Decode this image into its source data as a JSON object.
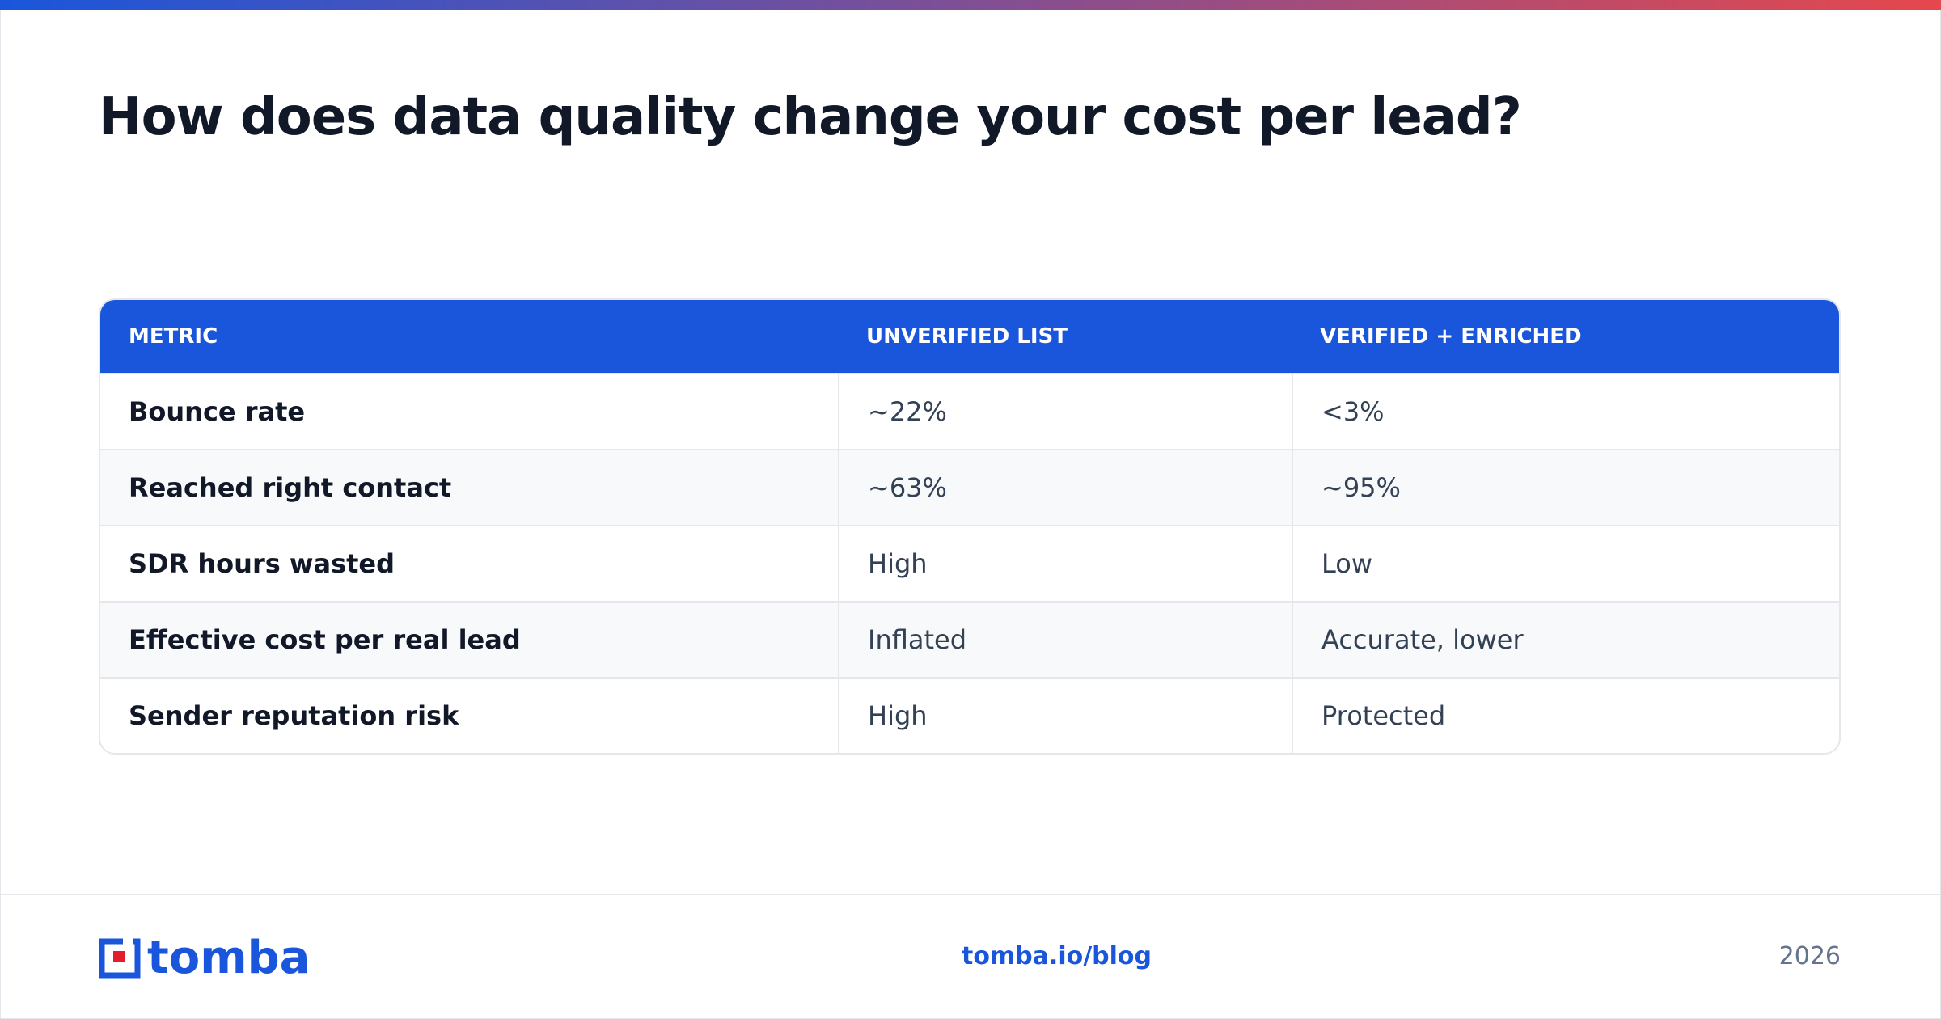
{
  "header": {
    "title": "How does data quality change your cost per lead?"
  },
  "table": {
    "columns": [
      "METRIC",
      "UNVERIFIED LIST",
      "VERIFIED + ENRICHED"
    ],
    "rows": [
      [
        "Bounce rate",
        "~22%",
        "<3%"
      ],
      [
        "Reached right contact",
        "~63%",
        "~95%"
      ],
      [
        "SDR hours wasted",
        "High",
        "Low"
      ],
      [
        "Effective cost per real lead",
        "Inflated",
        "Accurate, lower"
      ],
      [
        "Sender reputation risk",
        "High",
        "Protected"
      ]
    ]
  },
  "footer": {
    "logo": "tomba",
    "link": "tomba.io/blog",
    "year": "2026"
  }
}
